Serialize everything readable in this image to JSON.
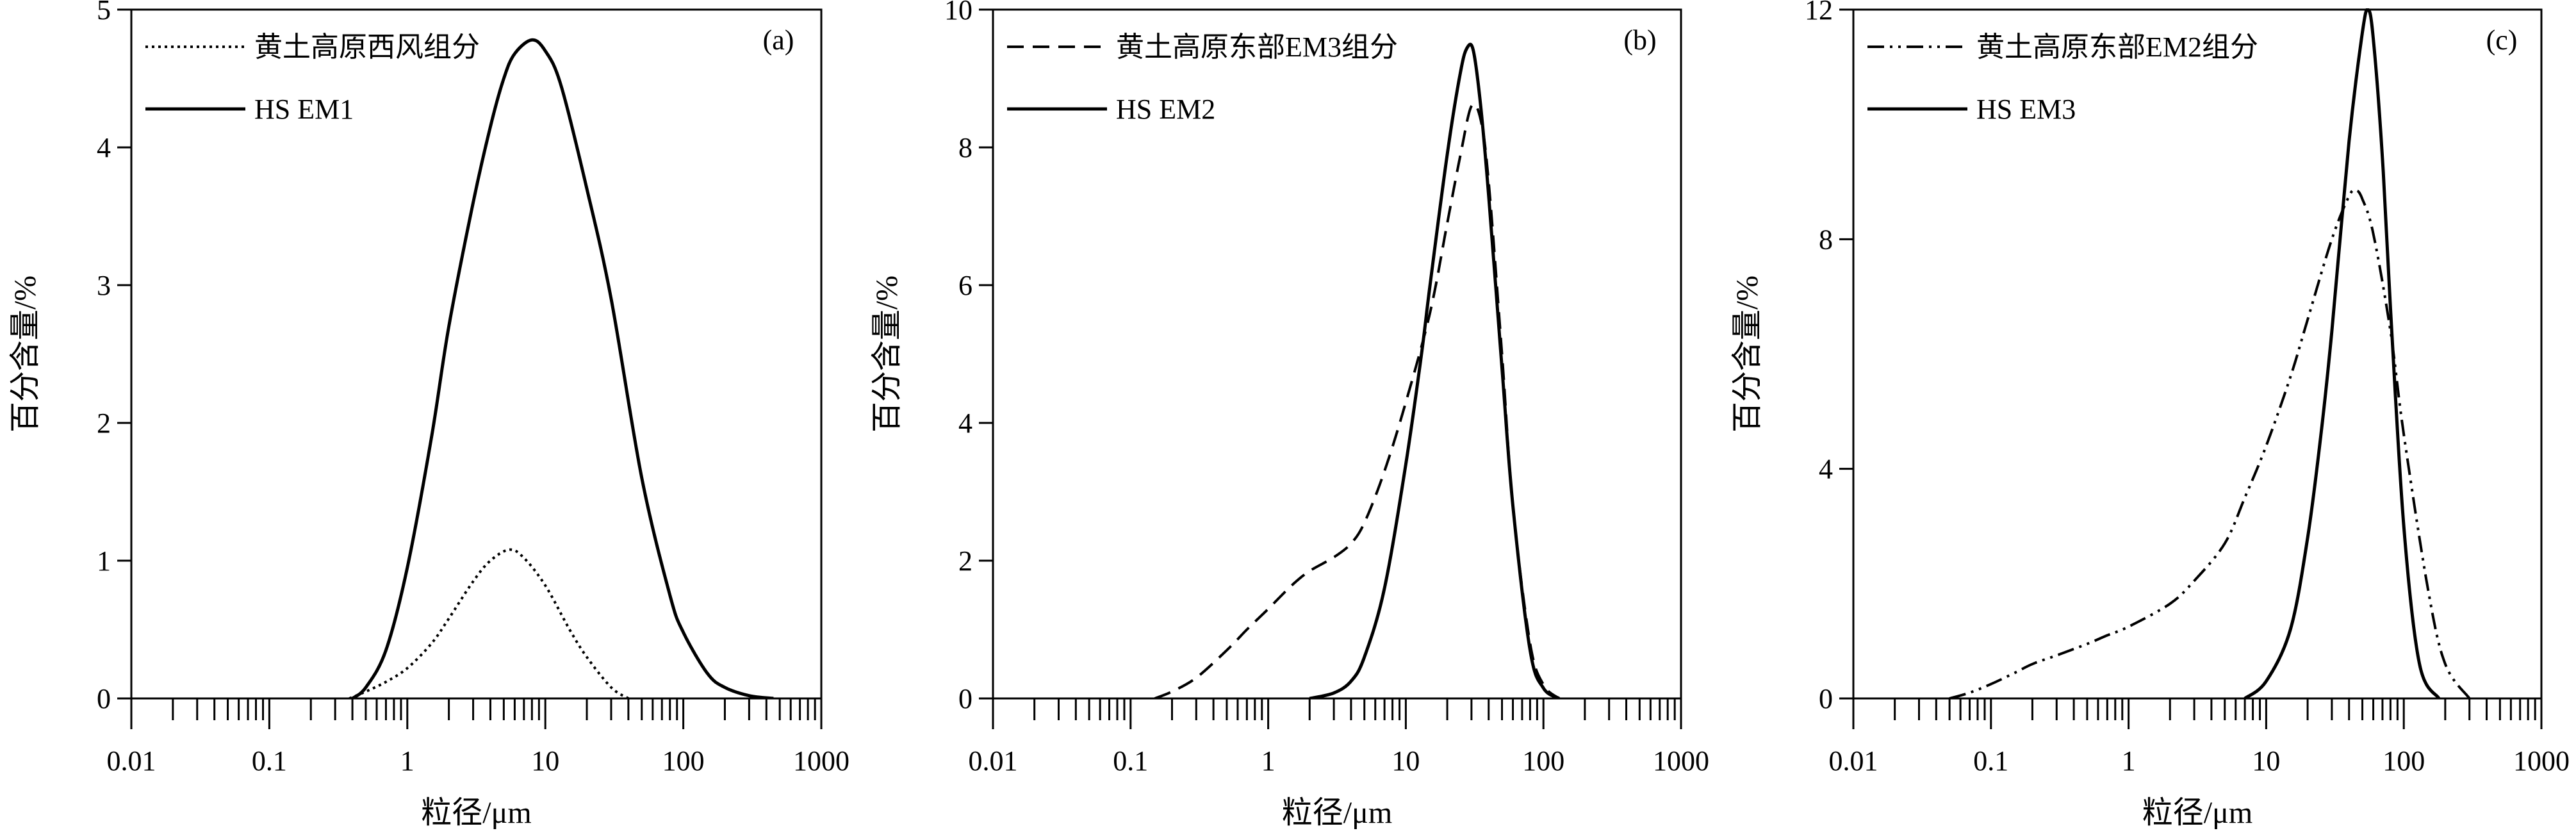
{
  "chart_data": [
    {
      "panel_label": "(a)",
      "type": "line",
      "x_scale": "log",
      "xlabel": "粒径/μm",
      "ylabel": "百分含量/%",
      "xlim": [
        0.01,
        1000
      ],
      "ylim": [
        0,
        5
      ],
      "x_ticks": [
        "0.01",
        "0.1",
        "1",
        "10",
        "100",
        "1000"
      ],
      "y_ticks": [
        "0",
        "1",
        "2",
        "3",
        "4",
        "5"
      ],
      "legend_position": "top-left",
      "series": [
        {
          "name": "黄土高原西风组分",
          "style": "dotted",
          "x": [
            0.38,
            0.5,
            0.7,
            1,
            1.5,
            2,
            3,
            4,
            5.5,
            7,
            10,
            15,
            20,
            30,
            40
          ],
          "y": [
            0,
            0.05,
            0.12,
            0.22,
            0.4,
            0.58,
            0.85,
            1.0,
            1.08,
            1.02,
            0.82,
            0.5,
            0.3,
            0.08,
            0.0
          ]
        },
        {
          "name": "HS EM1",
          "style": "solid",
          "x": [
            0.4,
            0.5,
            0.7,
            1,
            1.5,
            2,
            3,
            4,
            5,
            6,
            8,
            10,
            13,
            20,
            30,
            50,
            80,
            100,
            150,
            200,
            300,
            450
          ],
          "y": [
            0,
            0.08,
            0.35,
            0.95,
            1.9,
            2.7,
            3.6,
            4.15,
            4.5,
            4.68,
            4.78,
            4.7,
            4.45,
            3.7,
            2.9,
            1.6,
            0.75,
            0.48,
            0.18,
            0.08,
            0.02,
            0.0
          ]
        }
      ]
    },
    {
      "panel_label": "(b)",
      "type": "line",
      "x_scale": "log",
      "xlabel": "粒径/μm",
      "ylabel": "百分含量/%",
      "xlim": [
        0.01,
        1000
      ],
      "ylim": [
        0,
        10
      ],
      "x_ticks": [
        "0.01",
        "0.1",
        "1",
        "10",
        "100",
        "1000"
      ],
      "y_ticks": [
        "0",
        "2",
        "4",
        "6",
        "8",
        "10"
      ],
      "legend_position": "top-left",
      "series": [
        {
          "name": "黄土高原东部EM3组分",
          "style": "dashed",
          "x": [
            0.15,
            0.2,
            0.3,
            0.5,
            0.7,
            1,
            1.5,
            2,
            3,
            4,
            5,
            7,
            10,
            15,
            20,
            25,
            30,
            35,
            40,
            50,
            60,
            80,
            100,
            130
          ],
          "y": [
            0,
            0.1,
            0.3,
            0.7,
            1.0,
            1.3,
            1.65,
            1.85,
            2.05,
            2.25,
            2.55,
            3.3,
            4.3,
            5.6,
            6.9,
            7.9,
            8.6,
            8.4,
            7.5,
            5.0,
            2.8,
            0.8,
            0.2,
            0.0
          ]
        },
        {
          "name": "HS EM2",
          "style": "solid",
          "x": [
            2,
            3,
            4,
            5,
            7,
            10,
            13,
            15,
            20,
            25,
            28,
            31,
            35,
            40,
            50,
            60,
            80,
            100,
            130
          ],
          "y": [
            0,
            0.08,
            0.25,
            0.6,
            1.6,
            3.4,
            5.0,
            6.0,
            7.9,
            9.1,
            9.45,
            9.4,
            8.6,
            7.3,
            4.8,
            2.8,
            0.7,
            0.15,
            0.0
          ]
        }
      ]
    },
    {
      "panel_label": "(c)",
      "type": "line",
      "x_scale": "log",
      "xlabel": "粒径/μm",
      "ylabel": "百分含量/%",
      "xlim": [
        0.01,
        1000
      ],
      "ylim": [
        0,
        12
      ],
      "x_ticks": [
        "0.01",
        "0.1",
        "1",
        "10",
        "100",
        "1000"
      ],
      "y_ticks": [
        "0",
        "4",
        "8",
        "12"
      ],
      "legend_position": "top-left",
      "series": [
        {
          "name": "黄土高原东部EM2组分",
          "style": "dash-dot-dot",
          "x": [
            0.05,
            0.07,
            0.1,
            0.15,
            0.2,
            0.3,
            0.5,
            0.7,
            1,
            2,
            3,
            5,
            7,
            10,
            15,
            20,
            30,
            40,
            45,
            50,
            60,
            80,
            100,
            150,
            200,
            300
          ],
          "y": [
            0,
            0.1,
            0.25,
            0.45,
            0.6,
            0.75,
            0.95,
            1.1,
            1.25,
            1.65,
            2.05,
            2.7,
            3.5,
            4.4,
            5.6,
            6.6,
            8.0,
            8.75,
            8.85,
            8.7,
            8.1,
            6.4,
            4.6,
            1.9,
            0.6,
            0.0
          ]
        },
        {
          "name": "HS EM3",
          "style": "solid",
          "x": [
            7,
            10,
            15,
            20,
            25,
            30,
            40,
            50,
            55,
            60,
            70,
            80,
            100,
            130,
            180
          ],
          "y": [
            0,
            0.3,
            1.2,
            2.8,
            4.6,
            6.4,
            9.7,
            11.6,
            12.0,
            11.5,
            9.4,
            6.8,
            3.0,
            0.6,
            0.0
          ]
        }
      ]
    }
  ]
}
